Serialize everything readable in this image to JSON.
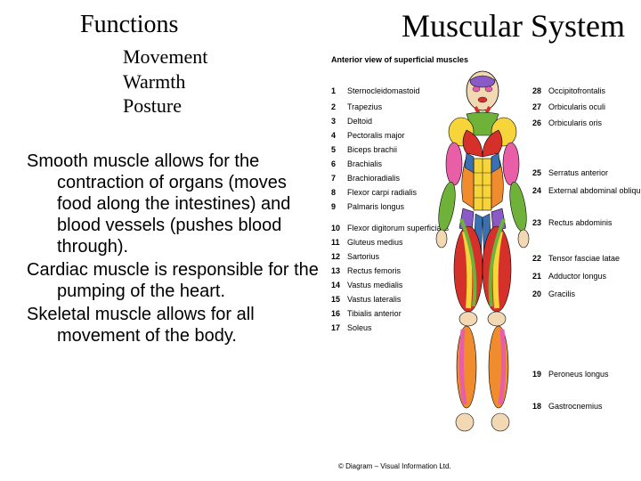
{
  "title": "Muscular System",
  "functions": {
    "heading": "Functions",
    "items": [
      "Movement",
      "Warmth",
      "Posture"
    ]
  },
  "paragraphs": [
    "Smooth muscle allows for the contraction of organs (moves food along the intestines) and blood vessels (pushes blood through).",
    "Cardiac muscle is responsible for the pumping of the heart.",
    "Skeletal muscle allows for all movement of the body."
  ],
  "figure": {
    "caption": "Anterior view of superficial muscles",
    "copyright": "© Diagram – Visual Information Ltd.",
    "labels_left": [
      {
        "n": "1",
        "t": "Sternocleidomastoid"
      },
      {
        "n": "2",
        "t": "Trapezius"
      },
      {
        "n": "3",
        "t": "Deltoid"
      },
      {
        "n": "4",
        "t": "Pectoralis major"
      },
      {
        "n": "5",
        "t": "Biceps brachii"
      },
      {
        "n": "6",
        "t": "Brachialis"
      },
      {
        "n": "7",
        "t": "Brachioradialis"
      },
      {
        "n": "8",
        "t": "Flexor carpi radialis"
      },
      {
        "n": "9",
        "t": "Palmaris longus"
      },
      {
        "n": "10",
        "t": "Flexor digitorum superficialis"
      },
      {
        "n": "11",
        "t": "Gluteus medius"
      },
      {
        "n": "12",
        "t": "Sartorius"
      },
      {
        "n": "13",
        "t": "Rectus femoris"
      },
      {
        "n": "14",
        "t": "Vastus medialis"
      },
      {
        "n": "15",
        "t": "Vastus lateralis"
      },
      {
        "n": "16",
        "t": "Tibialis anterior"
      },
      {
        "n": "17",
        "t": "Soleus"
      }
    ],
    "labels_right": [
      {
        "n": "28",
        "t": "Occipitofrontalis"
      },
      {
        "n": "27",
        "t": "Orbicularis oculi"
      },
      {
        "n": "26",
        "t": "Orbicularis oris"
      },
      {
        "n": "25",
        "t": "Serratus anterior"
      },
      {
        "n": "24",
        "t": "External abdominal oblique"
      },
      {
        "n": "23",
        "t": "Rectus abdominis"
      },
      {
        "n": "22",
        "t": "Tensor fasciae latae"
      },
      {
        "n": "21",
        "t": "Adductor longus"
      },
      {
        "n": "20",
        "t": "Gracilis"
      },
      {
        "n": "19",
        "t": "Peroneus longus"
      },
      {
        "n": "18",
        "t": "Gastrocnemius"
      }
    ],
    "colors": {
      "skin": "#f2d9b3",
      "red": "#d6302a",
      "yellow": "#f6d43a",
      "green": "#6fb23a",
      "blue": "#3a6fb2",
      "purple": "#8a5bc7",
      "pink": "#e85fa8",
      "orange": "#f08b2e",
      "outline": "#000000"
    }
  },
  "typography": {
    "title_fontsize": 36,
    "heading_fontsize": 28,
    "list_fontsize": 22,
    "body_fontsize": 20,
    "label_fontsize": 9
  }
}
